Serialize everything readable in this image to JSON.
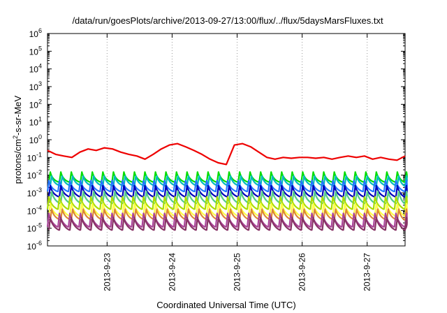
{
  "chart_data": {
    "type": "line",
    "title": "/data/run/goesPlots/archive/2013-09-27/13:00/flux/../flux/5daysMarsFluxes.txt",
    "xlabel": "Coordinated Universal Time (UTC)",
    "ylabel": {
      "pre": "protons/cm",
      "sup": "2",
      "post": "-s-sr-MeV"
    },
    "y_scale": "log",
    "ylim": [
      1e-06,
      1000000.0
    ],
    "y_ticks": [
      {
        "base": "10",
        "exp": "-6"
      },
      {
        "base": "10",
        "exp": "-5"
      },
      {
        "base": "10",
        "exp": "-4"
      },
      {
        "base": "10",
        "exp": "-3"
      },
      {
        "base": "10",
        "exp": "-2"
      },
      {
        "base": "10",
        "exp": "-1"
      },
      {
        "base": "10",
        "exp": "0"
      },
      {
        "base": "10",
        "exp": "1"
      },
      {
        "base": "10",
        "exp": "2"
      },
      {
        "base": "10",
        "exp": "3"
      },
      {
        "base": "10",
        "exp": "4"
      },
      {
        "base": "10",
        "exp": "5"
      },
      {
        "base": "10",
        "exp": "6"
      }
    ],
    "xlim": [
      "2013-09-22T02:00",
      "2013-09-27T14:00"
    ],
    "x_ticks": [
      "2013-9-23",
      "2013-9-24",
      "2013-9-25",
      "2013-9-26",
      "2013-9-27"
    ],
    "x_tick_dates": [
      "2013-09-23",
      "2013-09-24",
      "2013-09-25",
      "2013-09-26",
      "2013-09-27"
    ],
    "grid": "vertical dotted at x ticks",
    "series": [
      {
        "color": "#ee0000",
        "x": [
          "2013-09-22T02:00",
          "2013-09-22T05:00",
          "2013-09-22T08:00",
          "2013-09-22T11:00",
          "2013-09-22T14:00",
          "2013-09-22T17:00",
          "2013-09-22T20:00",
          "2013-09-22T23:00",
          "2013-09-23T02:00",
          "2013-09-23T05:00",
          "2013-09-23T08:00",
          "2013-09-23T11:00",
          "2013-09-23T14:00",
          "2013-09-23T17:00",
          "2013-09-23T20:00",
          "2013-09-23T23:00",
          "2013-09-24T02:00",
          "2013-09-24T05:00",
          "2013-09-24T08:00",
          "2013-09-24T11:00",
          "2013-09-24T14:00",
          "2013-09-24T17:00",
          "2013-09-24T20:00",
          "2013-09-24T23:00",
          "2013-09-25T02:00",
          "2013-09-25T05:00",
          "2013-09-25T08:00",
          "2013-09-25T11:00",
          "2013-09-25T14:00",
          "2013-09-25T17:00",
          "2013-09-25T20:00",
          "2013-09-25T23:00",
          "2013-09-26T02:00",
          "2013-09-26T05:00",
          "2013-09-26T08:00",
          "2013-09-26T11:00",
          "2013-09-26T14:00",
          "2013-09-26T17:00",
          "2013-09-26T20:00",
          "2013-09-26T23:00",
          "2013-09-27T02:00",
          "2013-09-27T05:00",
          "2013-09-27T08:00",
          "2013-09-27T11:00",
          "2013-09-27T14:00"
        ],
        "y": [
          0.25,
          0.15,
          0.12,
          0.1,
          0.2,
          0.3,
          0.25,
          0.35,
          0.3,
          0.2,
          0.15,
          0.12,
          0.08,
          0.15,
          0.3,
          0.5,
          0.6,
          0.4,
          0.25,
          0.15,
          0.08,
          0.05,
          0.04,
          0.5,
          0.6,
          0.4,
          0.2,
          0.1,
          0.08,
          0.1,
          0.09,
          0.1,
          0.1,
          0.09,
          0.1,
          0.08,
          0.1,
          0.12,
          0.1,
          0.12,
          0.08,
          0.1,
          0.08,
          0.07,
          0.12
        ]
      },
      {
        "color": "#00dd00",
        "low": 0.004,
        "high": 0.015
      },
      {
        "color": "#00bbbb",
        "low": 0.0025,
        "high": 0.009
      },
      {
        "color": "#2277ff",
        "low": 0.0012,
        "high": 0.005
      },
      {
        "color": "#0000bb",
        "low": 0.0006,
        "high": 0.0025
      },
      {
        "color": "#55cc88",
        "low": 0.00025,
        "high": 0.0012
      },
      {
        "color": "#aadd00",
        "low": 0.00012,
        "high": 0.0006
      },
      {
        "color": "#ffff44",
        "low": 5e-05,
        "high": 0.00025
      },
      {
        "color": "#dd8833",
        "low": 3e-05,
        "high": 0.00012
      },
      {
        "color": "#aa4499",
        "low": 1.2e-05,
        "high": 7e-05
      },
      {
        "color": "#883366",
        "low": 8e-06,
        "high": 4e-05
      }
    ]
  }
}
